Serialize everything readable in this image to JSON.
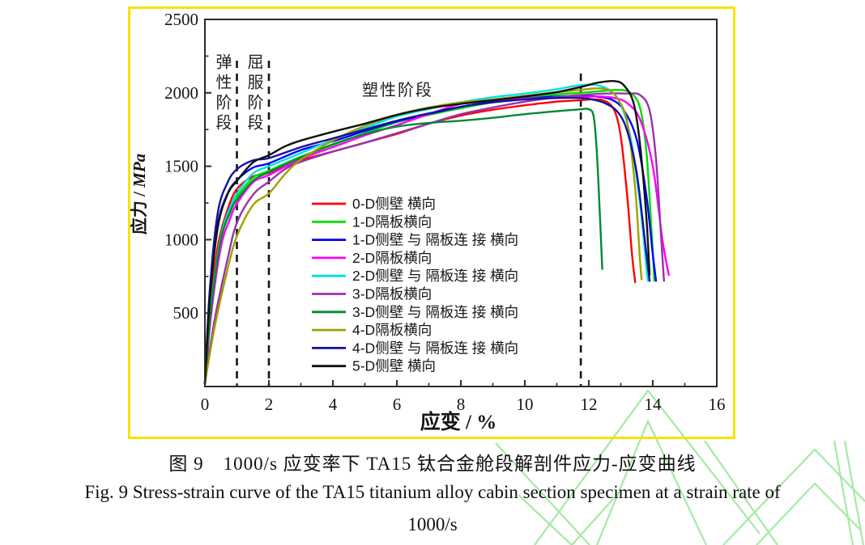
{
  "figure": {
    "border_color": "#F5E400",
    "watermark_color": "#A5E9A5",
    "stage_labels": {
      "elastic": "弹性阶段",
      "yield": "屈服阶段",
      "plastic": "塑性阶段"
    }
  },
  "captions": {
    "zh": "图 9　1000/s 应变率下 TA15 钛合金舱段解剖件应力-应变曲线",
    "en_line1": "Fig. 9 Stress-strain curve of the TA15 titanium alloy cabin section specimen at a strain rate of",
    "en_line2": "1000/s"
  },
  "chart_data": {
    "type": "line",
    "title": "",
    "xlabel": "应变 / %",
    "ylabel": "应力 / MPa",
    "xlim": [
      0,
      16
    ],
    "ylim": [
      0,
      2500
    ],
    "x_major_ticks": [
      0,
      2,
      4,
      6,
      8,
      10,
      12,
      14,
      16
    ],
    "x_minor_ticks": [
      1,
      3,
      5,
      7,
      9,
      11,
      13,
      15
    ],
    "y_major_ticks": [
      500,
      1000,
      1500,
      2000,
      2500
    ],
    "y_minor_ticks": [
      250,
      750,
      1250,
      1750,
      2250
    ],
    "dashed_guides_x": [
      1,
      2,
      11.75
    ],
    "grid": false,
    "legend_position": "inside-left-lower",
    "axis_color": "#2b2b2b",
    "series": [
      {
        "name": "0-D侧壁 横向",
        "color": "#FF0000",
        "points": [
          [
            0,
            20
          ],
          [
            0.15,
            500
          ],
          [
            0.4,
            950
          ],
          [
            0.7,
            1200
          ],
          [
            1,
            1345
          ],
          [
            1.5,
            1430
          ],
          [
            2,
            1455
          ],
          [
            3,
            1540
          ],
          [
            4,
            1600
          ],
          [
            5,
            1660
          ],
          [
            6,
            1720
          ],
          [
            7,
            1790
          ],
          [
            8,
            1845
          ],
          [
            9,
            1885
          ],
          [
            10,
            1915
          ],
          [
            11,
            1940
          ],
          [
            11.75,
            1950
          ],
          [
            12.1,
            1955
          ],
          [
            12.5,
            1945
          ],
          [
            12.8,
            1880
          ],
          [
            13,
            1700
          ],
          [
            13.2,
            1300
          ],
          [
            13.35,
            900
          ],
          [
            13.45,
            710
          ]
        ]
      },
      {
        "name": "1-D隔板横向",
        "color": "#00DD00",
        "points": [
          [
            0,
            20
          ],
          [
            0.2,
            550
          ],
          [
            0.5,
            1000
          ],
          [
            0.8,
            1190
          ],
          [
            1,
            1290
          ],
          [
            1.5,
            1420
          ],
          [
            2,
            1470
          ],
          [
            3,
            1565
          ],
          [
            4,
            1645
          ],
          [
            5,
            1725
          ],
          [
            6,
            1800
          ],
          [
            7,
            1850
          ],
          [
            8,
            1895
          ],
          [
            9,
            1935
          ],
          [
            10,
            1965
          ],
          [
            11,
            1990
          ],
          [
            11.75,
            2000
          ],
          [
            12.3,
            2010
          ],
          [
            12.9,
            2020
          ],
          [
            13.3,
            2000
          ],
          [
            13.6,
            1900
          ],
          [
            13.8,
            1600
          ],
          [
            13.95,
            1100
          ],
          [
            14.05,
            720
          ]
        ]
      },
      {
        "name": "1-D侧壁 与 隔板连 接 横向",
        "color": "#0000FF",
        "points": [
          [
            0,
            20
          ],
          [
            0.15,
            600
          ],
          [
            0.4,
            1100
          ],
          [
            0.7,
            1310
          ],
          [
            1,
            1405
          ],
          [
            1.5,
            1490
          ],
          [
            2,
            1520
          ],
          [
            3,
            1610
          ],
          [
            4,
            1670
          ],
          [
            5,
            1740
          ],
          [
            6,
            1805
          ],
          [
            7,
            1855
          ],
          [
            8,
            1905
          ],
          [
            9,
            1940
          ],
          [
            10,
            1960
          ],
          [
            11,
            1975
          ],
          [
            11.75,
            1980
          ],
          [
            12.2,
            1975
          ],
          [
            12.7,
            1955
          ],
          [
            13.1,
            1880
          ],
          [
            13.5,
            1680
          ],
          [
            13.8,
            1300
          ],
          [
            14,
            900
          ],
          [
            14.1,
            720
          ]
        ]
      },
      {
        "name": "2-D隔板横向",
        "color": "#FF00FF",
        "points": [
          [
            0,
            20
          ],
          [
            0.2,
            500
          ],
          [
            0.5,
            950
          ],
          [
            0.8,
            1150
          ],
          [
            1,
            1245
          ],
          [
            1.5,
            1390
          ],
          [
            2,
            1440
          ],
          [
            3,
            1550
          ],
          [
            4,
            1630
          ],
          [
            5,
            1710
          ],
          [
            6,
            1780
          ],
          [
            7,
            1855
          ],
          [
            8,
            1925
          ],
          [
            9,
            1950
          ],
          [
            10,
            1960
          ],
          [
            11,
            1965
          ],
          [
            11.75,
            1970
          ],
          [
            12.3,
            1975
          ],
          [
            12.8,
            1965
          ],
          [
            13.2,
            1930
          ],
          [
            13.6,
            1820
          ],
          [
            14,
            1500
          ],
          [
            14.3,
            1000
          ],
          [
            14.5,
            760
          ]
        ]
      },
      {
        "name": "2-D侧壁 与 隔板连 接 横向",
        "color": "#00E0E6",
        "points": [
          [
            0,
            20
          ],
          [
            0.2,
            560
          ],
          [
            0.5,
            1020
          ],
          [
            0.8,
            1225
          ],
          [
            1,
            1315
          ],
          [
            1.5,
            1450
          ],
          [
            2,
            1500
          ],
          [
            3,
            1590
          ],
          [
            4,
            1680
          ],
          [
            5,
            1760
          ],
          [
            6,
            1840
          ],
          [
            7,
            1890
          ],
          [
            8,
            1935
          ],
          [
            9,
            1970
          ],
          [
            10,
            1995
          ],
          [
            11,
            2025
          ],
          [
            11.5,
            2045
          ],
          [
            11.9,
            2055
          ],
          [
            12.3,
            2050
          ],
          [
            12.7,
            2010
          ],
          [
            13,
            1920
          ],
          [
            13.3,
            1700
          ],
          [
            13.6,
            1250
          ],
          [
            13.8,
            810
          ],
          [
            13.85,
            720
          ]
        ]
      },
      {
        "name": "3-D隔板横向",
        "color": "#9933AA",
        "points": [
          [
            0,
            20
          ],
          [
            0.3,
            450
          ],
          [
            0.7,
            860
          ],
          [
            1,
            1115
          ],
          [
            1.5,
            1305
          ],
          [
            2,
            1395
          ],
          [
            2.5,
            1480
          ],
          [
            3,
            1530
          ],
          [
            4,
            1600
          ],
          [
            5,
            1660
          ],
          [
            6,
            1725
          ],
          [
            7,
            1790
          ],
          [
            8,
            1855
          ],
          [
            9,
            1900
          ],
          [
            10,
            1940
          ],
          [
            11,
            1970
          ],
          [
            11.75,
            1985
          ],
          [
            12.5,
            1995
          ],
          [
            13.2,
            1995
          ],
          [
            13.6,
            1985
          ],
          [
            13.9,
            1880
          ],
          [
            14.1,
            1550
          ],
          [
            14.25,
            1050
          ],
          [
            14.35,
            720
          ]
        ]
      },
      {
        "name": "3-D侧壁 与 隔板连 接 横向",
        "color": "#008A32",
        "points": [
          [
            0,
            20
          ],
          [
            0.2,
            540
          ],
          [
            0.5,
            1000
          ],
          [
            0.8,
            1195
          ],
          [
            1,
            1270
          ],
          [
            1.5,
            1400
          ],
          [
            2,
            1460
          ],
          [
            3,
            1560
          ],
          [
            4,
            1650
          ],
          [
            5,
            1720
          ],
          [
            6,
            1770
          ],
          [
            7,
            1795
          ],
          [
            8,
            1810
          ],
          [
            9,
            1830
          ],
          [
            10,
            1855
          ],
          [
            11,
            1875
          ],
          [
            11.75,
            1888
          ],
          [
            12,
            1888
          ],
          [
            12.15,
            1840
          ],
          [
            12.25,
            1600
          ],
          [
            12.35,
            1150
          ],
          [
            12.42,
            800
          ]
        ]
      },
      {
        "name": "4-D隔板横向",
        "color": "#A0A000",
        "points": [
          [
            0,
            20
          ],
          [
            0.3,
            400
          ],
          [
            0.7,
            790
          ],
          [
            1,
            1025
          ],
          [
            1.5,
            1235
          ],
          [
            2,
            1315
          ],
          [
            2.5,
            1445
          ],
          [
            3,
            1545
          ],
          [
            4,
            1675
          ],
          [
            5,
            1775
          ],
          [
            6,
            1850
          ],
          [
            7,
            1900
          ],
          [
            8,
            1935
          ],
          [
            9,
            1955
          ],
          [
            10,
            1980
          ],
          [
            11,
            2005
          ],
          [
            11.75,
            2020
          ],
          [
            12.2,
            2030
          ],
          [
            12.6,
            2020
          ],
          [
            12.9,
            1960
          ],
          [
            13.2,
            1800
          ],
          [
            13.45,
            1350
          ],
          [
            13.6,
            860
          ],
          [
            13.65,
            730
          ]
        ]
      },
      {
        "name": "4-D侧壁 与 隔板连 接 横向",
        "color": "#12129E",
        "points": [
          [
            0,
            20
          ],
          [
            0.15,
            650
          ],
          [
            0.4,
            1180
          ],
          [
            0.7,
            1385
          ],
          [
            1,
            1480
          ],
          [
            1.5,
            1540
          ],
          [
            2,
            1555
          ],
          [
            3,
            1630
          ],
          [
            4,
            1690
          ],
          [
            5,
            1750
          ],
          [
            6,
            1810
          ],
          [
            7,
            1860
          ],
          [
            8,
            1905
          ],
          [
            9,
            1935
          ],
          [
            10,
            1955
          ],
          [
            11,
            1965
          ],
          [
            11.75,
            1965
          ],
          [
            12.1,
            1955
          ],
          [
            12.5,
            1930
          ],
          [
            12.9,
            1870
          ],
          [
            13.2,
            1740
          ],
          [
            13.5,
            1450
          ],
          [
            13.75,
            1000
          ],
          [
            13.9,
            720
          ]
        ]
      },
      {
        "name": "5-D侧壁 横向",
        "color": "#111111",
        "points": [
          [
            0,
            20
          ],
          [
            0.15,
            580
          ],
          [
            0.4,
            1080
          ],
          [
            0.7,
            1305
          ],
          [
            1,
            1400
          ],
          [
            1.5,
            1525
          ],
          [
            2,
            1575
          ],
          [
            2.5,
            1635
          ],
          [
            3,
            1675
          ],
          [
            4,
            1735
          ],
          [
            5,
            1790
          ],
          [
            6,
            1850
          ],
          [
            7,
            1895
          ],
          [
            8,
            1925
          ],
          [
            9,
            1950
          ],
          [
            10,
            1975
          ],
          [
            11,
            2005
          ],
          [
            11.75,
            2040
          ],
          [
            12.3,
            2070
          ],
          [
            12.8,
            2080
          ],
          [
            13.1,
            2050
          ],
          [
            13.4,
            1930
          ],
          [
            13.6,
            1650
          ],
          [
            13.8,
            1150
          ],
          [
            13.9,
            760
          ]
        ]
      }
    ]
  }
}
